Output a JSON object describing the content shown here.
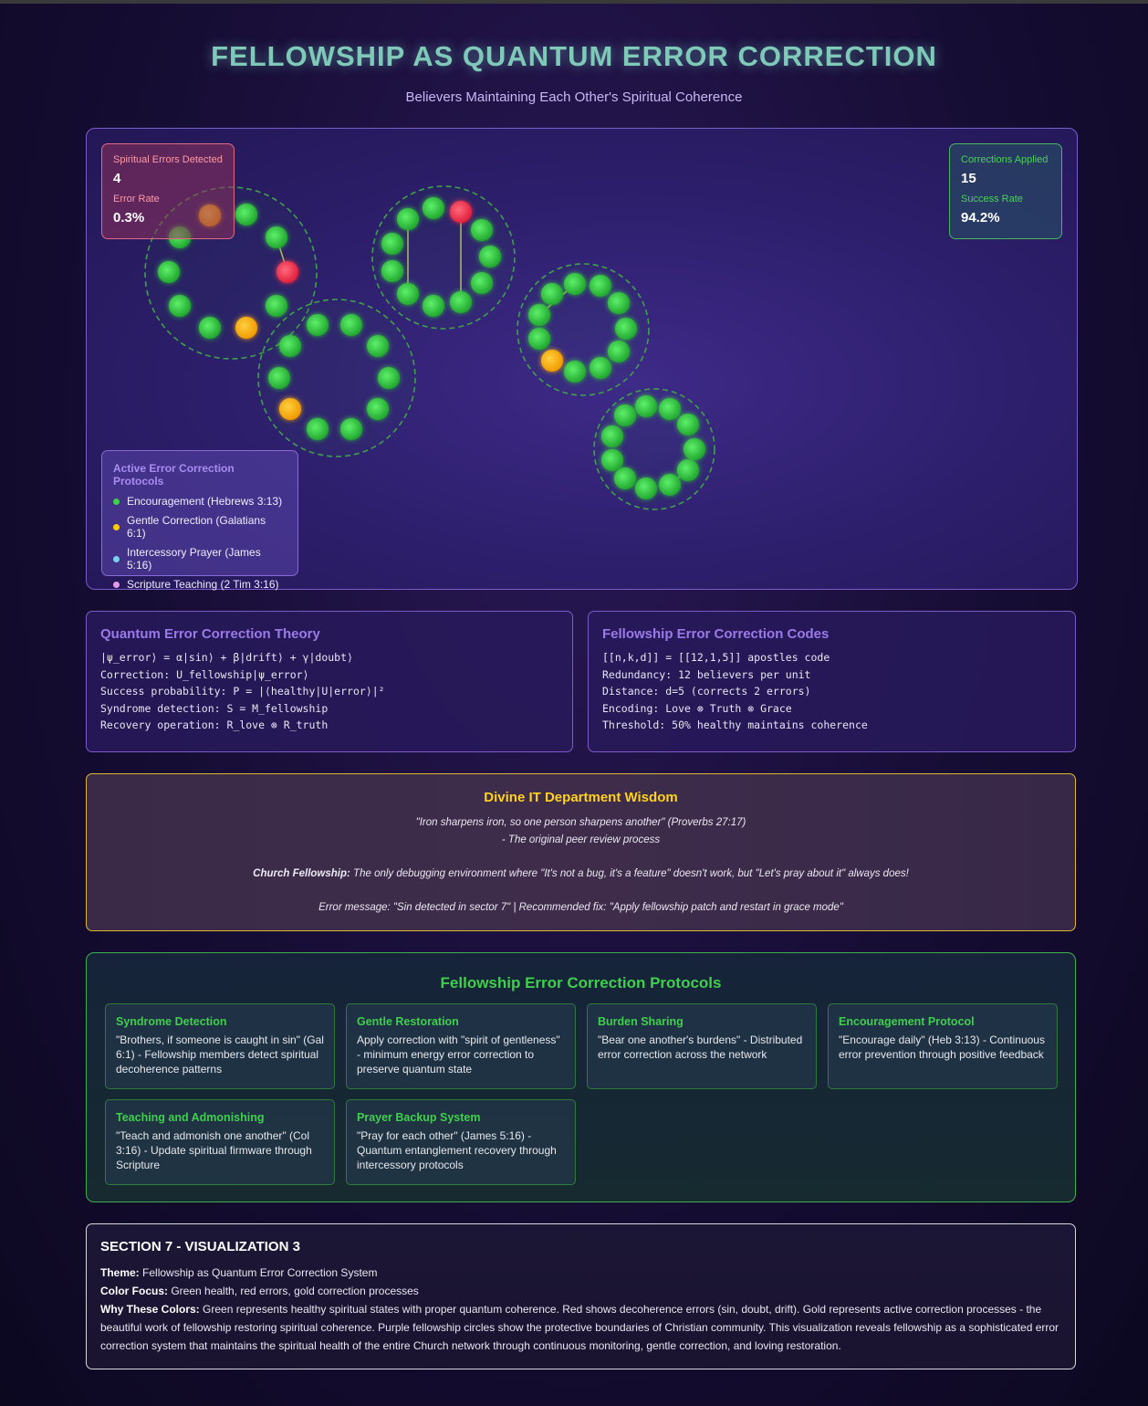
{
  "header": {
    "title": "FELLOWSHIP AS QUANTUM ERROR CORRECTION",
    "subtitle": "Believers Maintaining Each Other's Spiritual Coherence"
  },
  "stats_errors": {
    "detected_label": "Spiritual Errors Detected",
    "detected_value": "4",
    "rate_label": "Error Rate",
    "rate_value": "0.3%"
  },
  "stats_corrections": {
    "applied_label": "Corrections Applied",
    "applied_value": "15",
    "success_label": "Success Rate",
    "success_value": "94.2%"
  },
  "legend": {
    "title": "Active Error Correction Protocols",
    "items": [
      {
        "label": "Encouragement (Hebrews 3:13)",
        "color": "#3ed14a"
      },
      {
        "label": "Gentle Correction (Galatians 6:1)",
        "color": "#ffcc00"
      },
      {
        "label": "Intercessory Prayer (James 5:16)",
        "color": "#7ad0f0"
      },
      {
        "label": "Scripture Teaching (2 Tim 3:16)",
        "color": "#e49ae6"
      }
    ]
  },
  "colors": {
    "healthy": "#3ed14a",
    "error": "#ff3b55",
    "correction": "#ffb400",
    "circle_border": "#3fa04a"
  },
  "theory": {
    "title": "Quantum Error Correction Theory",
    "lines": [
      "|ψ_error⟩ = α|sin⟩ + β|drift⟩ + γ|doubt⟩",
      "Correction: U_fellowship|ψ_error⟩",
      "Success probability: P = |⟨healthy|U|error⟩|²",
      "Syndrome detection: S = M_fellowship",
      "Recovery operation: R_love ⊗ R_truth"
    ]
  },
  "codes": {
    "title": "Fellowship Error Correction Codes",
    "lines": [
      "[[n,k,d]] = [[12,1,5]] apostles code",
      "Redundancy: 12 believers per unit",
      "Distance: d=5 (corrects 2 errors)",
      "Encoding: Love ⊗ Truth ⊗ Grace",
      "Threshold: 50% healthy maintains coherence"
    ]
  },
  "wisdom": {
    "title": "Divine IT Department Wisdom",
    "quote": "\"Iron sharpens iron, so one person sharpens another\" (Proverbs 27:17)",
    "quote_note": "- The original peer review process",
    "fellowship_label": "Church Fellowship:",
    "fellowship_text": " The only debugging environment where \"It's not a bug, it's a feature\" doesn't work, but \"Let's pray about it\" always does!",
    "error_message": "Error message: \"Sin detected in sector 7\" | Recommended fix: \"Apply fellowship patch and restart in grace mode\""
  },
  "protocols": {
    "title": "Fellowship Error Correction Protocols",
    "cards": [
      {
        "name": "Syndrome Detection",
        "desc": "\"Brothers, if someone is caught in sin\" (Gal 6:1) - Fellowship members detect spiritual decoherence patterns"
      },
      {
        "name": "Gentle Restoration",
        "desc": "Apply correction with \"spirit of gentleness\" - minimum energy error correction to preserve quantum state"
      },
      {
        "name": "Burden Sharing",
        "desc": "\"Bear one another's burdens\" - Distributed error correction across the network"
      },
      {
        "name": "Encouragement Protocol",
        "desc": "\"Encourage daily\" (Heb 3:13) - Continuous error prevention through positive feedback"
      },
      {
        "name": "Teaching and Admonishing",
        "desc": "\"Teach and admonish one another\" (Col 3:16) - Update spiritual firmware through Scripture"
      },
      {
        "name": "Prayer Backup System",
        "desc": "\"Pray for each other\" (James 5:16) - Quantum entanglement recovery through intercessory protocols"
      }
    ]
  },
  "section": {
    "title": "SECTION 7 - VISUALIZATION 3",
    "theme_label": "Theme:",
    "theme_text": " Fellowship as Quantum Error Correction System",
    "color_label": "Color Focus:",
    "color_text": " Green health, red errors, gold correction processes",
    "why_label": "Why These Colors:",
    "why_text": " Green represents healthy spiritual states with proper quantum coherence. Red shows decoherence errors (sin, doubt, drift). Gold represents active correction processes - the beautiful work of fellowship restoring spiritual coherence. Purple fellowship circles show the protective boundaries of Christian community. This visualization reveals fellowship as a sophisticated error correction system that maintains the spiritual health of the entire Church network through continuous monitoring, gentle correction, and loving restoration."
  }
}
